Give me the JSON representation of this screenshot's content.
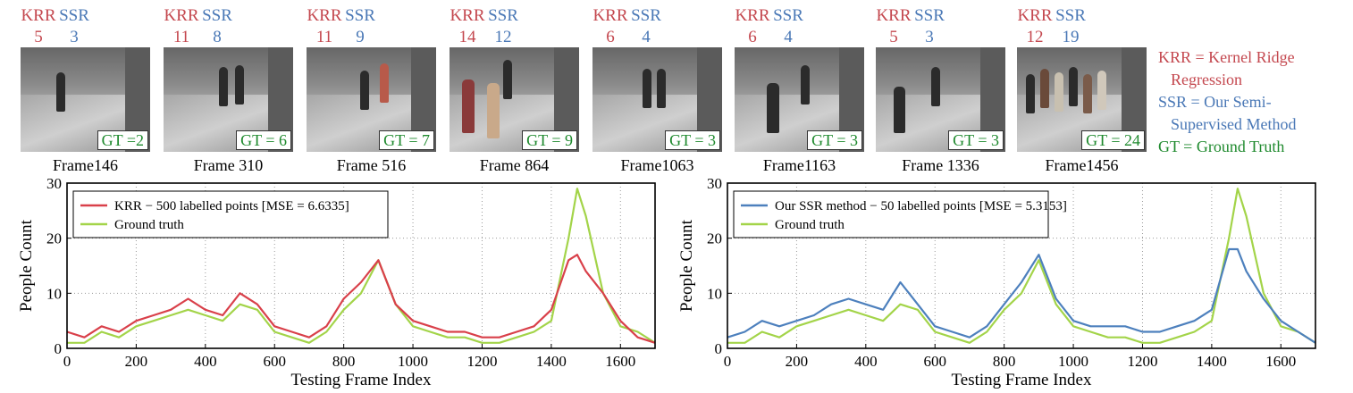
{
  "frames": [
    {
      "krr_label": "KRR",
      "ssr_label": "SSR",
      "krr": "5",
      "ssr": "3",
      "gt": "GT =2",
      "name": "Frame146"
    },
    {
      "krr_label": "KRR",
      "ssr_label": "SSR",
      "krr": "11",
      "ssr": "8",
      "gt": "GT = 6",
      "name": "Frame 310"
    },
    {
      "krr_label": "KRR",
      "ssr_label": "SSR",
      "krr": "11",
      "ssr": "9",
      "gt": "GT = 7",
      "name": "Frame 516"
    },
    {
      "krr_label": "KRR",
      "ssr_label": "SSR",
      "krr": "14",
      "ssr": "12",
      "gt": "GT = 9",
      "name": "Frame 864"
    },
    {
      "krr_label": "KRR",
      "ssr_label": "SSR",
      "krr": "6",
      "ssr": "4",
      "gt": "GT = 3",
      "name": "Frame1063"
    },
    {
      "krr_label": "KRR",
      "ssr_label": "SSR",
      "krr": "6",
      "ssr": "4",
      "gt": "GT = 3",
      "name": "Frame1163"
    },
    {
      "krr_label": "KRR",
      "ssr_label": "SSR",
      "krr": "5",
      "ssr": "3",
      "gt": "GT = 3",
      "name": "Frame 1336"
    },
    {
      "krr_label": "KRR",
      "ssr_label": "SSR",
      "krr": "12",
      "ssr": "19",
      "gt": "GT = 24",
      "name": "Frame1456"
    }
  ],
  "notes": {
    "krr1": "KRR = Kernel Ridge",
    "krr2": "Regression",
    "ssr1": "SSR = Our Semi-",
    "ssr2": "Supervised Method",
    "gt": "GT = Ground Truth"
  },
  "colors": {
    "krr": "#d9404a",
    "ssr": "#4d80bd",
    "gt": "#a3d449",
    "krr_text": "#c4484f",
    "ssr_text": "#4a78b6",
    "gt_text": "#1f8a2e"
  },
  "chart_data": [
    {
      "type": "line",
      "xlabel": "Testing Frame Index",
      "ylabel": "People Count",
      "xlim": [
        0,
        1700
      ],
      "ylim": [
        0,
        30
      ],
      "xticks": [
        0,
        200,
        400,
        600,
        800,
        1000,
        1200,
        1400,
        1600
      ],
      "yticks": [
        0,
        10,
        20,
        30
      ],
      "grid": true,
      "legend_position": "top-left",
      "x": [
        0,
        50,
        100,
        150,
        200,
        250,
        300,
        350,
        400,
        450,
        500,
        550,
        600,
        650,
        700,
        750,
        800,
        850,
        900,
        950,
        1000,
        1050,
        1100,
        1150,
        1200,
        1250,
        1300,
        1350,
        1400,
        1450,
        1475,
        1500,
        1550,
        1600,
        1650,
        1700
      ],
      "series": [
        {
          "name": "KRR − 500 labelled points [MSE = 6.6335]",
          "color": "#d9404a",
          "values": [
            3,
            2,
            4,
            3,
            5,
            6,
            7,
            9,
            7,
            6,
            10,
            8,
            4,
            3,
            2,
            4,
            9,
            12,
            16,
            8,
            5,
            4,
            3,
            3,
            2,
            2,
            3,
            4,
            7,
            16,
            17,
            14,
            10,
            5,
            2,
            1
          ]
        },
        {
          "name": "Ground truth",
          "color": "#a3d449",
          "values": [
            1,
            1,
            3,
            2,
            4,
            5,
            6,
            7,
            6,
            5,
            8,
            7,
            3,
            2,
            1,
            3,
            7,
            10,
            16,
            8,
            4,
            3,
            2,
            2,
            1,
            1,
            2,
            3,
            5,
            20,
            29,
            24,
            10,
            4,
            3,
            1
          ]
        }
      ]
    },
    {
      "type": "line",
      "xlabel": "Testing Frame Index",
      "ylabel": "People Count",
      "xlim": [
        0,
        1700
      ],
      "ylim": [
        0,
        30
      ],
      "xticks": [
        0,
        200,
        400,
        600,
        800,
        1000,
        1200,
        1400,
        1600
      ],
      "yticks": [
        0,
        10,
        20,
        30
      ],
      "grid": true,
      "legend_position": "top-left",
      "x": [
        0,
        50,
        100,
        150,
        200,
        250,
        300,
        350,
        400,
        450,
        500,
        550,
        600,
        650,
        700,
        750,
        800,
        850,
        900,
        950,
        1000,
        1050,
        1100,
        1150,
        1200,
        1250,
        1300,
        1350,
        1400,
        1450,
        1475,
        1500,
        1550,
        1600,
        1650,
        1700
      ],
      "series": [
        {
          "name": "Our SSR method − 50 labelled points [MSE = 5.3153]",
          "color": "#4d80bd",
          "values": [
            2,
            3,
            5,
            4,
            5,
            6,
            8,
            9,
            8,
            7,
            12,
            8,
            4,
            3,
            2,
            4,
            8,
            12,
            17,
            9,
            5,
            4,
            4,
            4,
            3,
            3,
            4,
            5,
            7,
            18,
            18,
            14,
            9,
            5,
            3,
            1
          ]
        },
        {
          "name": "Ground truth",
          "color": "#a3d449",
          "values": [
            1,
            1,
            3,
            2,
            4,
            5,
            6,
            7,
            6,
            5,
            8,
            7,
            3,
            2,
            1,
            3,
            7,
            10,
            16,
            8,
            4,
            3,
            2,
            2,
            1,
            1,
            2,
            3,
            5,
            20,
            29,
            24,
            10,
            4,
            3,
            1
          ]
        }
      ]
    }
  ]
}
